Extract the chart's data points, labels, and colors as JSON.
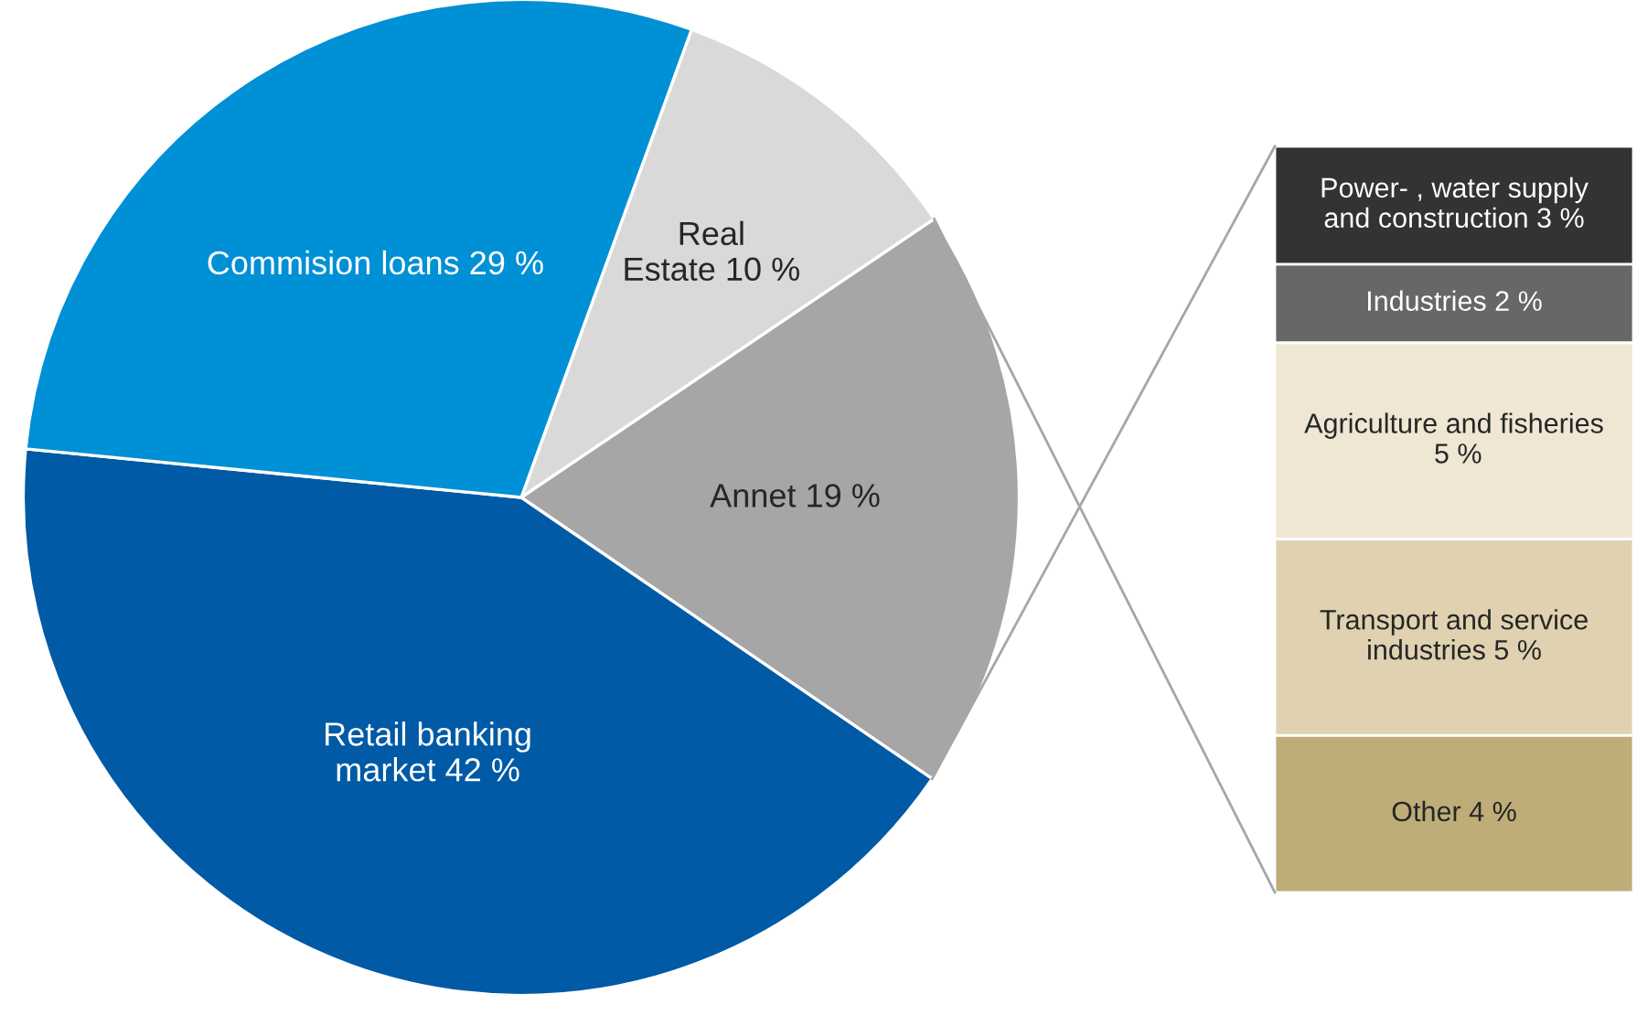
{
  "chart_data": [
    {
      "type": "pie",
      "categories": [
        "Real\nEstate",
        "Annet",
        "Retail banking\nmarket",
        "Commision loans"
      ],
      "values": [
        10,
        19,
        42,
        29
      ],
      "value_labels": [
        "10 %",
        "19 %",
        "42 %",
        "29 %"
      ],
      "colors": [
        "#d9d9d9",
        "#a6a6a6",
        "#005aa5",
        "#0090d5"
      ],
      "legend": false
    },
    {
      "type": "bar",
      "stacked": true,
      "categories": [
        null
      ],
      "legend": false,
      "series": [
        {
          "name": "Other",
          "color": "#bead78",
          "values": [
            4
          ],
          "value_labels": [
            "4 %"
          ]
        },
        {
          "name": "Transport and service\nindustries",
          "color": "#e0d2b0",
          "values": [
            5
          ],
          "value_labels": [
            "5 %"
          ]
        },
        {
          "name": "Agriculture and fisheries\n",
          "color": "#efe7d3",
          "values": [
            5
          ],
          "value_labels": [
            "5 %"
          ]
        },
        {
          "name": "Industries",
          "color": "#676767",
          "values": [
            2
          ],
          "value_labels": [
            "2 %"
          ]
        },
        {
          "name": "Power- , water supply\nand construction",
          "color": "#333333",
          "values": [
            3
          ],
          "value_labels": [
            "3 %"
          ]
        }
      ]
    }
  ]
}
